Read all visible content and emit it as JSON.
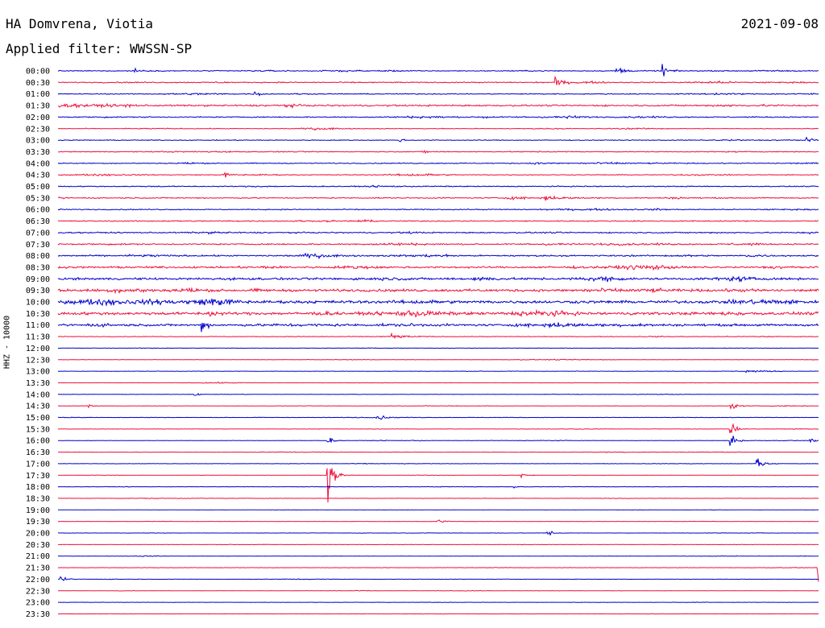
{
  "header": {
    "station": "HA Domvrena, Viotia",
    "date": "2021-09-08",
    "filter": "Applied filter: WWSSN-SP"
  },
  "axis": {
    "ylabel": "HHZ - 10000"
  },
  "colors": {
    "trace_a": "#0000cc",
    "trace_b": "#ee0f3c",
    "background": "#ffffff"
  },
  "chart_data": {
    "type": "line",
    "title": "HA Domvrena, Viotia",
    "subtitle": "Applied filter: WWSSN-SP",
    "ylabel": "HHZ - 10000",
    "row_labels": [
      "00:00",
      "00:30",
      "01:00",
      "01:30",
      "02:00",
      "02:30",
      "03:00",
      "03:30",
      "04:00",
      "04:30",
      "05:00",
      "05:30",
      "06:00",
      "06:30",
      "07:00",
      "07:30",
      "08:00",
      "08:30",
      "09:00",
      "09:30",
      "10:00",
      "10:30",
      "11:00",
      "11:30",
      "12:00",
      "12:30",
      "13:00",
      "13:30",
      "14:00",
      "14:30",
      "15:00",
      "15:30",
      "16:00",
      "16:30",
      "17:00",
      "17:30",
      "18:00",
      "18:30",
      "19:00",
      "19:30",
      "20:00",
      "20:30",
      "21:00",
      "21:30",
      "22:00",
      "22:30",
      "23:00",
      "23:30"
    ],
    "noise_level": [
      0.16,
      0.18,
      0.16,
      0.26,
      0.18,
      0.13,
      0.13,
      0.14,
      0.16,
      0.14,
      0.16,
      0.18,
      0.16,
      0.18,
      0.2,
      0.22,
      0.24,
      0.3,
      0.36,
      0.42,
      0.48,
      0.48,
      0.36,
      0.1,
      0.06,
      0.06,
      0.06,
      0.05,
      0.06,
      0.06,
      0.07,
      0.06,
      0.06,
      0.05,
      0.05,
      0.05,
      0.05,
      0.05,
      0.04,
      0.04,
      0.04,
      0.05,
      0.05,
      0.05,
      0.05,
      0.05,
      0.04,
      0.04
    ],
    "events": [
      {
        "row": 0,
        "x": 0.1,
        "amp": 0.9
      },
      {
        "row": 0,
        "x": 0.735,
        "amp": 2.2
      },
      {
        "row": 0,
        "x": 0.795,
        "amp": 2.0
      },
      {
        "row": 1,
        "x": 0.655,
        "amp": 1.5
      },
      {
        "row": 2,
        "x": 0.26,
        "amp": 0.8
      },
      {
        "row": 3,
        "x": 0.09,
        "amp": 1.0
      },
      {
        "row": 4,
        "x": 0.56,
        "amp": 0.7
      },
      {
        "row": 6,
        "x": 0.45,
        "amp": 0.5
      },
      {
        "row": 6,
        "x": 0.985,
        "amp": 0.9
      },
      {
        "row": 7,
        "x": 0.48,
        "amp": 0.7
      },
      {
        "row": 9,
        "x": 0.22,
        "amp": 0.8
      },
      {
        "row": 11,
        "x": 0.64,
        "amp": 0.8
      },
      {
        "row": 20,
        "x": 0.2,
        "amp": 1.0
      },
      {
        "row": 21,
        "x": 0.2,
        "amp": 1.0
      },
      {
        "row": 22,
        "x": 0.19,
        "amp": 2.0
      },
      {
        "row": 23,
        "x": 0.44,
        "amp": 1.4
      },
      {
        "row": 26,
        "x": 0.905,
        "amp": 0.9
      },
      {
        "row": 28,
        "x": 0.18,
        "amp": 0.5
      },
      {
        "row": 29,
        "x": 0.04,
        "amp": 0.6
      },
      {
        "row": 29,
        "x": 0.885,
        "amp": 1.6
      },
      {
        "row": 30,
        "x": 0.42,
        "amp": 1.6
      },
      {
        "row": 31,
        "x": 0.885,
        "amp": 2.0
      },
      {
        "row": 32,
        "x": 0.355,
        "amp": 1.4
      },
      {
        "row": 32,
        "x": 0.885,
        "amp": 3.5
      },
      {
        "row": 32,
        "x": 0.99,
        "amp": 0.6
      },
      {
        "row": 34,
        "x": 0.92,
        "amp": 3.0
      },
      {
        "row": 35,
        "x": 0.355,
        "amp": 9.0
      },
      {
        "row": 35,
        "x": 0.61,
        "amp": 0.8
      },
      {
        "row": 36,
        "x": 0.6,
        "amp": 0.5
      },
      {
        "row": 39,
        "x": 0.5,
        "amp": 0.7
      },
      {
        "row": 40,
        "x": 0.645,
        "amp": 0.9
      },
      {
        "row": 43,
        "x": 1.0,
        "amp": 5.0
      },
      {
        "row": 44,
        "x": 0.005,
        "amp": 1.2
      }
    ]
  }
}
